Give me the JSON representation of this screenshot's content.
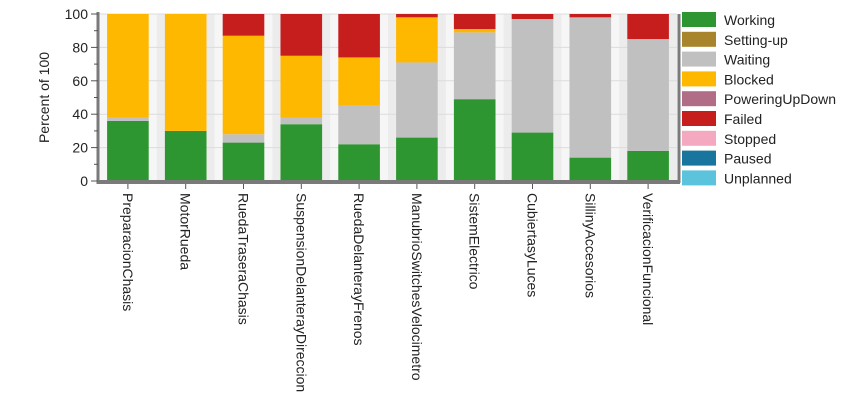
{
  "chart_data": {
    "type": "bar",
    "stacked": true,
    "title": "",
    "xlabel": "",
    "ylabel": "Percent of 100",
    "ylim": [
      0,
      100
    ],
    "yticks": [
      0,
      20,
      40,
      60,
      80,
      100
    ],
    "grid": true,
    "legend_position": "right",
    "categories": [
      "PreparacionChasis",
      "MotorRueda",
      "RuedaTraseraChasis",
      "SuspensionDelanterayDireccion",
      "RuedaDelanterayFrenos",
      "ManubrioSwitchesVelocimetro",
      "SistemElectrico",
      "CubiertasyLuces",
      "SillinyAccesorios",
      "VerificacionFuncional"
    ],
    "series": [
      {
        "name": "Working",
        "color": "#2e9631",
        "values": [
          36,
          30,
          23,
          34,
          22,
          26,
          49,
          29,
          14,
          18
        ]
      },
      {
        "name": "Setting-up",
        "color": "#a8842c",
        "values": [
          0,
          0,
          0,
          0,
          0,
          0,
          0,
          0,
          0,
          0
        ]
      },
      {
        "name": "Waiting",
        "color": "#c0c0c0",
        "values": [
          2,
          0,
          5,
          4,
          23,
          45,
          40,
          68,
          84,
          67
        ]
      },
      {
        "name": "Blocked",
        "color": "#ffb800",
        "values": [
          62,
          70,
          59,
          37,
          29,
          27,
          2,
          0,
          0,
          0
        ]
      },
      {
        "name": "PoweringUpDown",
        "color": "#b06d85",
        "values": [
          0,
          0,
          0,
          0,
          0,
          0,
          0,
          0,
          0,
          0
        ]
      },
      {
        "name": "Failed",
        "color": "#c61d1d",
        "values": [
          0,
          0,
          13,
          25,
          26,
          2,
          9,
          3,
          2,
          15
        ]
      },
      {
        "name": "Stopped",
        "color": "#f4a9c0",
        "values": [
          0,
          0,
          0,
          0,
          0,
          0,
          0,
          0,
          0,
          0
        ]
      },
      {
        "name": "Paused",
        "color": "#17759e",
        "values": [
          0,
          0,
          0,
          0,
          0,
          0,
          0,
          0,
          0,
          0
        ]
      },
      {
        "name": "Unplanned",
        "color": "#5bc3dc",
        "values": [
          0,
          0,
          0,
          0,
          0,
          0,
          0,
          0,
          0,
          0
        ]
      }
    ]
  }
}
